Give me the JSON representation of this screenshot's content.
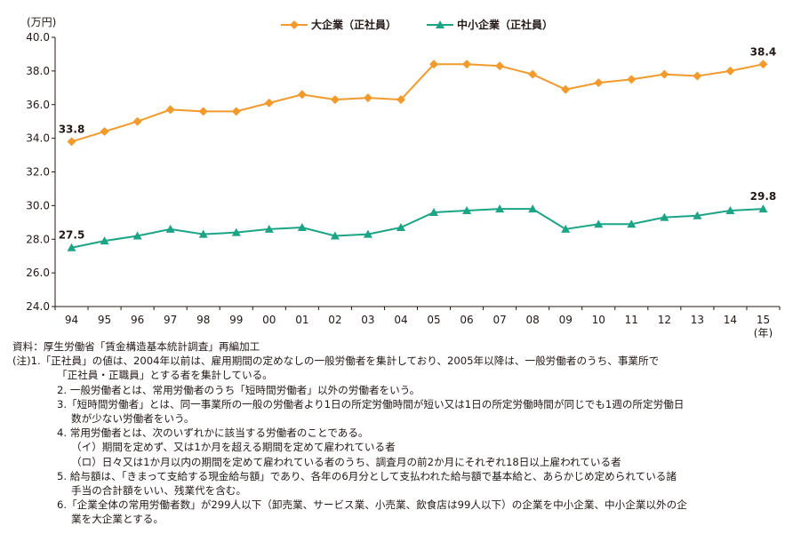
{
  "chart_data": {
    "type": "line",
    "unit_label": "(万円)",
    "x_unit_label": "(年)",
    "categories": [
      "94",
      "95",
      "96",
      "97",
      "98",
      "99",
      "00",
      "01",
      "02",
      "03",
      "04",
      "05",
      "06",
      "07",
      "08",
      "09",
      "10",
      "11",
      "12",
      "13",
      "14",
      "15"
    ],
    "ylim": [
      24.0,
      40.0
    ],
    "yticks": [
      "40.0",
      "38.0",
      "36.0",
      "34.0",
      "32.0",
      "30.0",
      "28.0",
      "26.0",
      "24.0"
    ],
    "grid": false,
    "legend_position": "top-center",
    "series": [
      {
        "name": "大企業（正社員）",
        "color": "#f39a2b",
        "marker": "diamond",
        "values": [
          33.8,
          34.4,
          35.0,
          35.7,
          35.6,
          35.6,
          36.1,
          36.6,
          36.3,
          36.4,
          36.3,
          38.4,
          38.4,
          38.3,
          37.8,
          36.9,
          37.3,
          37.5,
          37.8,
          37.7,
          38.0,
          38.4
        ],
        "labels": [
          {
            "index": 0,
            "text": "33.8"
          },
          {
            "index": 21,
            "text": "38.4"
          }
        ]
      },
      {
        "name": "中小企業（正社員）",
        "color": "#1aa586",
        "marker": "triangle",
        "values": [
          27.5,
          27.9,
          28.2,
          28.6,
          28.3,
          28.4,
          28.6,
          28.7,
          28.2,
          28.3,
          28.7,
          29.6,
          29.7,
          29.8,
          29.8,
          28.6,
          28.9,
          28.9,
          29.3,
          29.4,
          29.7,
          29.8
        ],
        "labels": [
          {
            "index": 0,
            "text": "27.5"
          },
          {
            "index": 21,
            "text": "29.8"
          }
        ]
      }
    ]
  },
  "notes": {
    "source": "資料：厚生労働省「賃金構造基本統計調査」再編加工",
    "n1a": "(注)1.「正社員」の値は、2004年以前は、雇用期間の定めなしの一般労働者を集計しており、2005年以降は、一般労働者のうち、事業所で",
    "n1b": "「正社員・正職員」とする者を集計している。",
    "n2": "2. 一般労働者とは、常用労働者のうち「短時間労働者」以外の労働者をいう。",
    "n3a": "3.「短時間労働者」とは、同一事業所の一般の労働者より1日の所定労働時間が短い又は1日の所定労働時間が同じでも1週の所定労働日",
    "n3b": "数が少ない労働者をいう。",
    "n4": "4. 常用労働者とは、次のいずれかに該当する労働者のことである。",
    "n4i": "（イ）期間を定めず、又は1か月を超える期間を定めて雇われている者",
    "n4ro": "（ロ）日々又は1か月以内の期間を定めて雇われている者のうち、調査月の前2か月にそれぞれ18日以上雇われている者",
    "n5a": "5. 給与額は、「きまって支給する現金給与額」であり、各年の6月分として支払われた給与額で基本給と、あらかじめ定められている諸",
    "n5b": "手当の合計額をいい、残業代を含む。",
    "n6a": "6.「企業全体の常用労働者数」が299人以下（卸売業、サービス業、小売業、飲食店は99人以下）の企業を中小企業、中小企業以外の企",
    "n6b": "業を大企業とする。"
  }
}
